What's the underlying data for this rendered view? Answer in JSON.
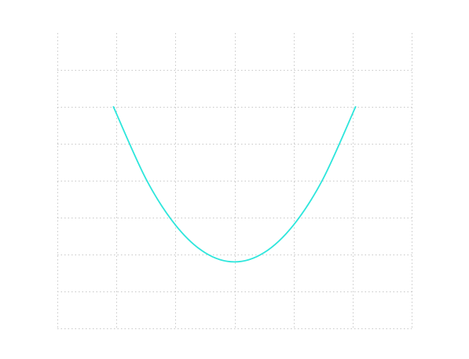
{
  "chart_data": {
    "type": "line",
    "title": "",
    "xlabel": "",
    "ylabel": "",
    "grid": true,
    "grid_style": "dotted",
    "x_gridlines": [
      -3,
      -2,
      -1,
      0,
      1,
      2,
      3
    ],
    "y_gridlines": [
      0,
      1,
      2,
      3,
      4,
      5,
      6,
      7
    ],
    "xlim": [
      -3,
      3
    ],
    "ylim": [
      0,
      8
    ],
    "series": [
      {
        "function": "y = x^2 + 1.8",
        "color": "#2ee6dc",
        "x_range": [
          -2.05,
          2.05
        ],
        "x": [
          -2.05,
          -1.5,
          -1.0,
          -0.5,
          0,
          0.5,
          1.0,
          1.5,
          2.05
        ],
        "y": [
          6.0,
          4.05,
          2.8,
          2.05,
          1.8,
          2.05,
          2.8,
          4.05,
          6.0
        ]
      }
    ]
  }
}
